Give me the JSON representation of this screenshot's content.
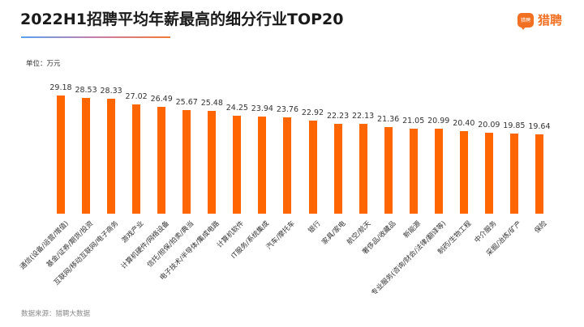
{
  "header": {
    "title": "2022H1招聘平均年薪最高的细分行业TOP20",
    "logo_icon_text": "猎聘",
    "logo_text": "猎聘"
  },
  "unit_label": "单位：万元",
  "source_label": "数据来源：猎聘大数据",
  "colors": {
    "bar": "#ff6600",
    "brand": "#f36f21"
  },
  "chart_data": {
    "type": "bar",
    "title": "2022H1招聘平均年薪最高的细分行业TOP20",
    "xlabel": "",
    "ylabel": "单位：万元",
    "grid": false,
    "legend": "none",
    "categories": [
      "通信(设备/运营/增值)",
      "基金/证券/期货/投资",
      "互联网/移动互联网/电子商务",
      "游戏产业",
      "计算机硬件/网络设备",
      "信托/担保/拍卖/典当",
      "电子技术/半导体/集成电路",
      "计算机软件",
      "IT服务/系统集成",
      "汽车/摩托车",
      "银行",
      "家具/家电",
      "航空/航天",
      "奢侈品/收藏品",
      "新能源",
      "专业服务(咨询/财会/法律/翻译等)",
      "制药/生物工程",
      "中介服务",
      "采掘/冶炼/矿产",
      "保险"
    ],
    "values": [
      29.18,
      28.53,
      28.33,
      27.02,
      26.49,
      25.67,
      25.48,
      24.25,
      23.94,
      23.76,
      22.92,
      22.23,
      22.13,
      21.36,
      21.05,
      20.99,
      20.4,
      20.09,
      19.85,
      19.64
    ],
    "value_labels": [
      "29.18",
      "28.53",
      "28.33",
      "27.02",
      "26.49",
      "25.67",
      "25.48",
      "24.25",
      "23.94",
      "23.76",
      "22.92",
      "22.23",
      "22.13",
      "21.36",
      "21.05",
      "20.99",
      "20.40",
      "20.09",
      "19.85",
      "19.64"
    ]
  }
}
